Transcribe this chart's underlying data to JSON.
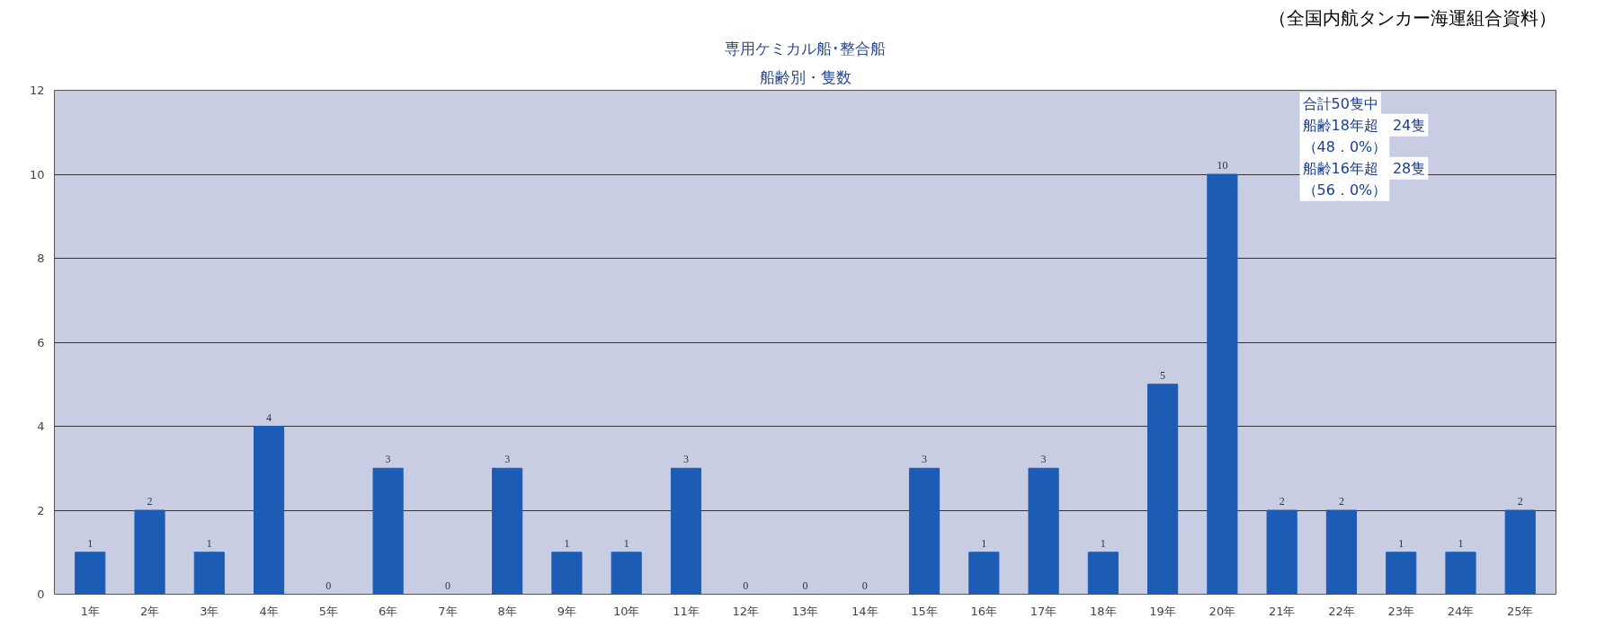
{
  "chart_data": {
    "type": "bar",
    "title": "専用ケミカル船･整合船",
    "subtitle": "船齢別・隻数",
    "categories": [
      "1年",
      "2年",
      "3年",
      "4年",
      "5年",
      "6年",
      "7年",
      "8年",
      "9年",
      "10年",
      "11年",
      "12年",
      "13年",
      "14年",
      "15年",
      "16年",
      "17年",
      "18年",
      "19年",
      "20年",
      "21年",
      "22年",
      "23年",
      "24年",
      "25年"
    ],
    "values": [
      1,
      2,
      1,
      4,
      0,
      3,
      0,
      3,
      1,
      1,
      3,
      0,
      0,
      0,
      3,
      1,
      3,
      1,
      5,
      10,
      2,
      2,
      1,
      1,
      2
    ],
    "color": "#1c5cb4",
    "ylim": [
      0,
      12
    ],
    "yticks": [
      0,
      2,
      4,
      6,
      8,
      10,
      12
    ],
    "grid": "y",
    "data_labels": true,
    "annotations": [
      "（全国内航タンカー海運組合資料）",
      "合計50隻中",
      "船齢18年超　24隻",
      "（48．0%）",
      "船齢16年超　28隻",
      "（56．0%）"
    ]
  }
}
